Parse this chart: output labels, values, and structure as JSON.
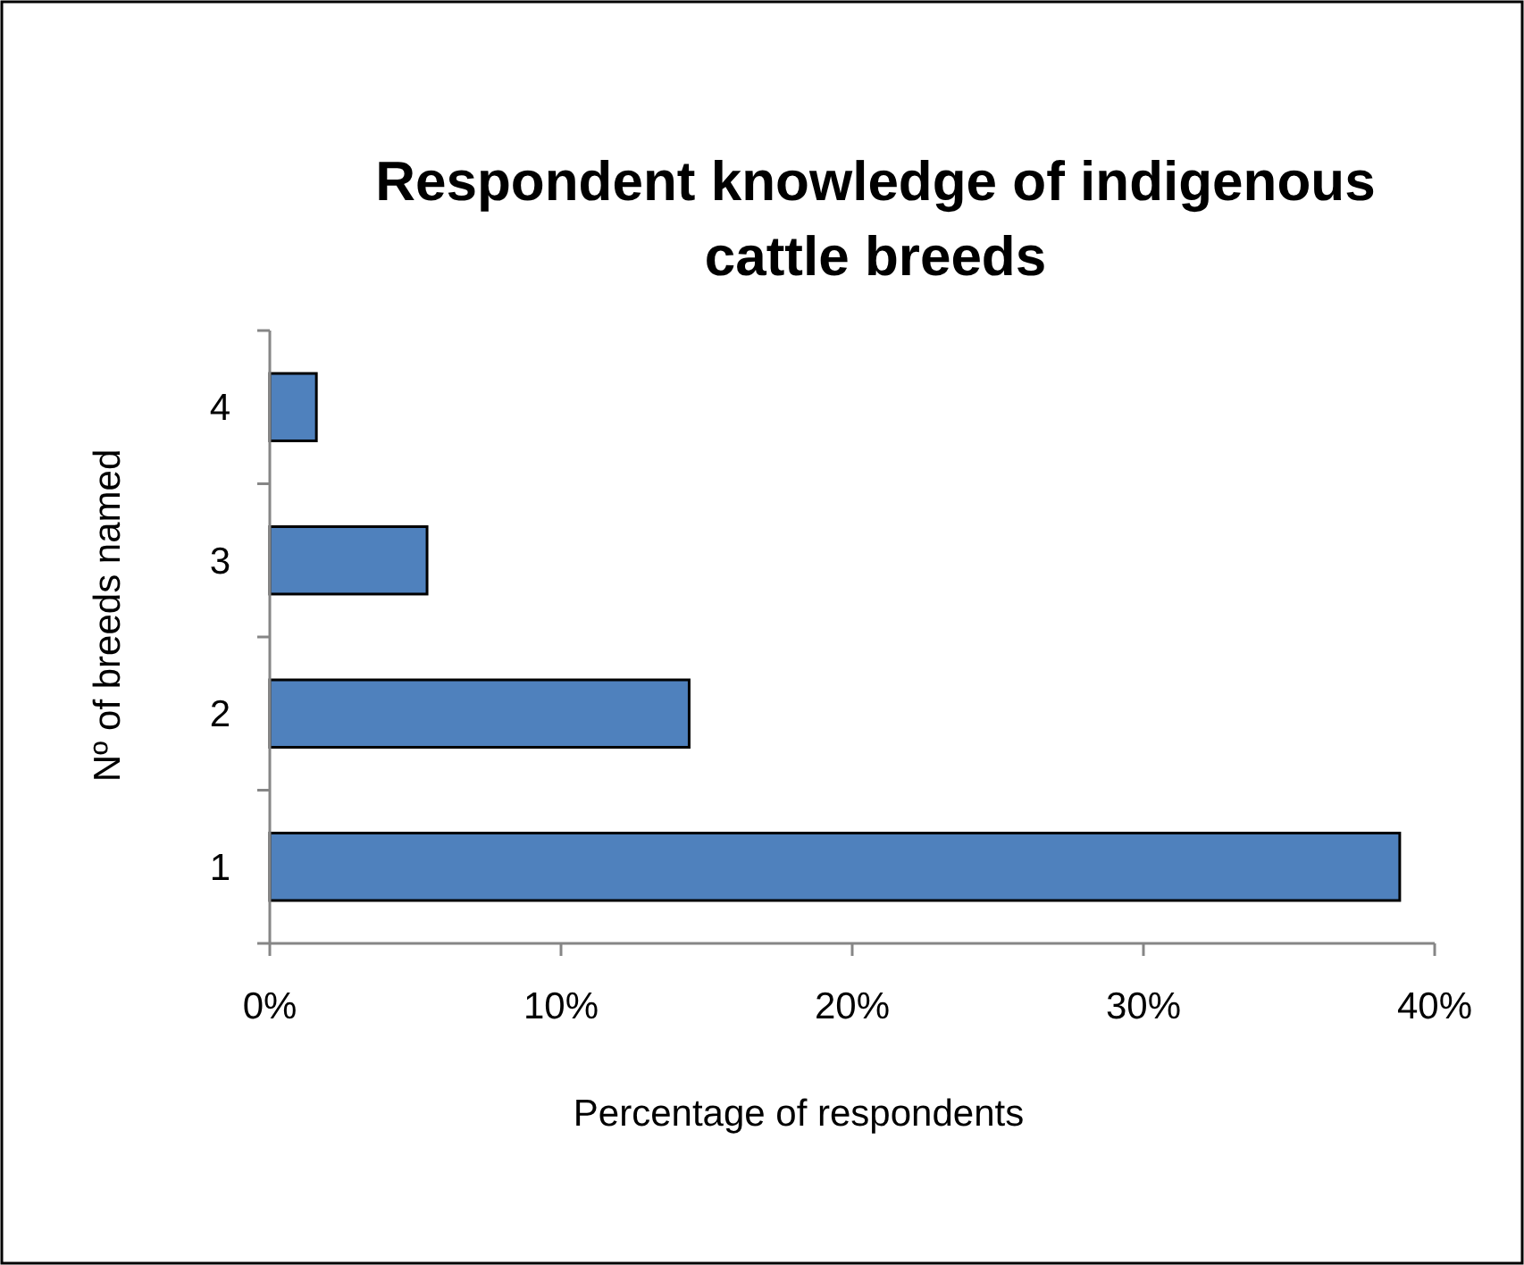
{
  "chart_data": {
    "type": "bar",
    "orientation": "horizontal",
    "title": "Respondent knowledge of indigenous cattle breeds",
    "xlabel": "Percentage of respondents",
    "ylabel": "Nº of breeds named",
    "categories": [
      "4",
      "3",
      "2",
      "1"
    ],
    "series": [
      {
        "color": "#4f81bd",
        "values": [
          1.6,
          5.4,
          14.4,
          38.8
        ]
      }
    ],
    "xlim": [
      0,
      40
    ],
    "xticks": [
      {
        "value": 0,
        "label": "0%"
      },
      {
        "value": 10,
        "label": "10%"
      },
      {
        "value": 20,
        "label": "20%"
      },
      {
        "value": 30,
        "label": "30%"
      },
      {
        "value": 40,
        "label": "40%"
      }
    ],
    "grid": false
  }
}
